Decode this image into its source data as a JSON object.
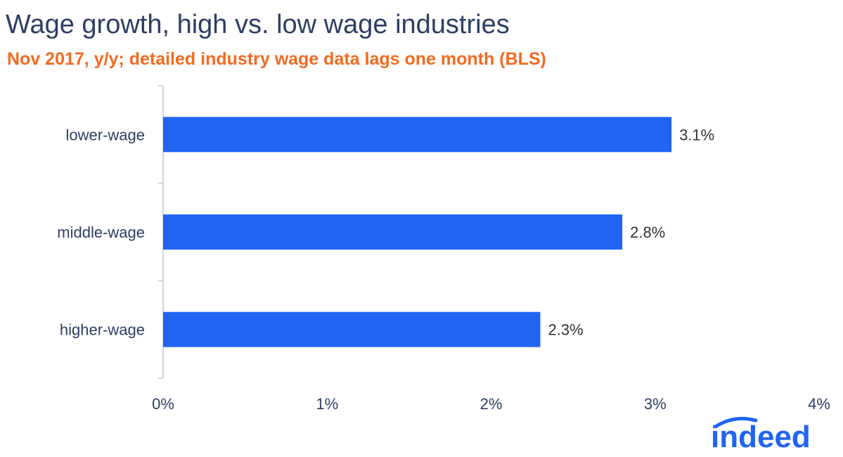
{
  "title": "Wage growth, high vs. low wage industries",
  "subtitle": "Nov 2017, y/y; detailed industry wage data lags one month (BLS)",
  "colors": {
    "title": "#2d3e64",
    "subtitle": "#f26b21",
    "bar": "#2164f3",
    "axis_text": "#2d3e64",
    "label_text": "#333333",
    "axis_line": "#c8c8c8",
    "logo": "#2164f3"
  },
  "logo": {
    "text": "indeed"
  },
  "chart_data": {
    "type": "bar",
    "orientation": "horizontal",
    "categories": [
      "lower-wage",
      "middle-wage",
      "higher-wage"
    ],
    "values": [
      3.1,
      2.8,
      2.3
    ],
    "data_labels": [
      "3.1%",
      "2.8%",
      "2.3%"
    ],
    "xlim": [
      0,
      4
    ],
    "x_ticks": [
      0,
      1,
      2,
      3,
      4
    ],
    "x_tick_labels": [
      "0%",
      "1%",
      "2%",
      "3%",
      "4%"
    ],
    "grid": false,
    "legend": "none"
  }
}
